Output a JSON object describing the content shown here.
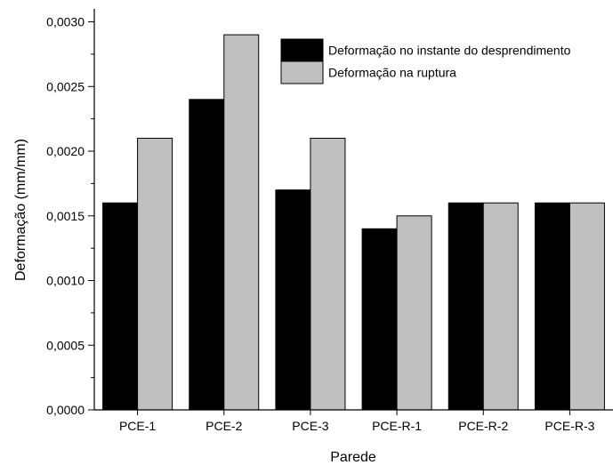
{
  "chart_data": {
    "type": "bar",
    "categories": [
      "PCE-1",
      "PCE-2",
      "PCE-3",
      "PCE-R-1",
      "PCE-R-2",
      "PCE-R-3"
    ],
    "series": [
      {
        "name": "Deformação no instante do desprendimento",
        "values": [
          0.0016,
          0.0024,
          0.0017,
          0.0014,
          0.0016,
          0.0016
        ],
        "color": "#000000"
      },
      {
        "name": "Deformação na ruptura",
        "values": [
          0.0021,
          0.0029,
          0.0021,
          0.0015,
          0.0016,
          0.0016
        ],
        "color": "#c0c0c0"
      }
    ],
    "xlabel": "Parede",
    "ylabel": "Deformação (mm/mm)",
    "ylim": [
      0,
      0.0031
    ],
    "yticks": [
      0,
      0.0005,
      0.001,
      0.0015,
      0.002,
      0.0025,
      0.003
    ],
    "ytick_labels": [
      "0,0000",
      "0,0005",
      "0,0010",
      "0,0015",
      "0,0020",
      "0,0025",
      "0,0030"
    ],
    "grid": false,
    "legend_position": "top-right"
  }
}
